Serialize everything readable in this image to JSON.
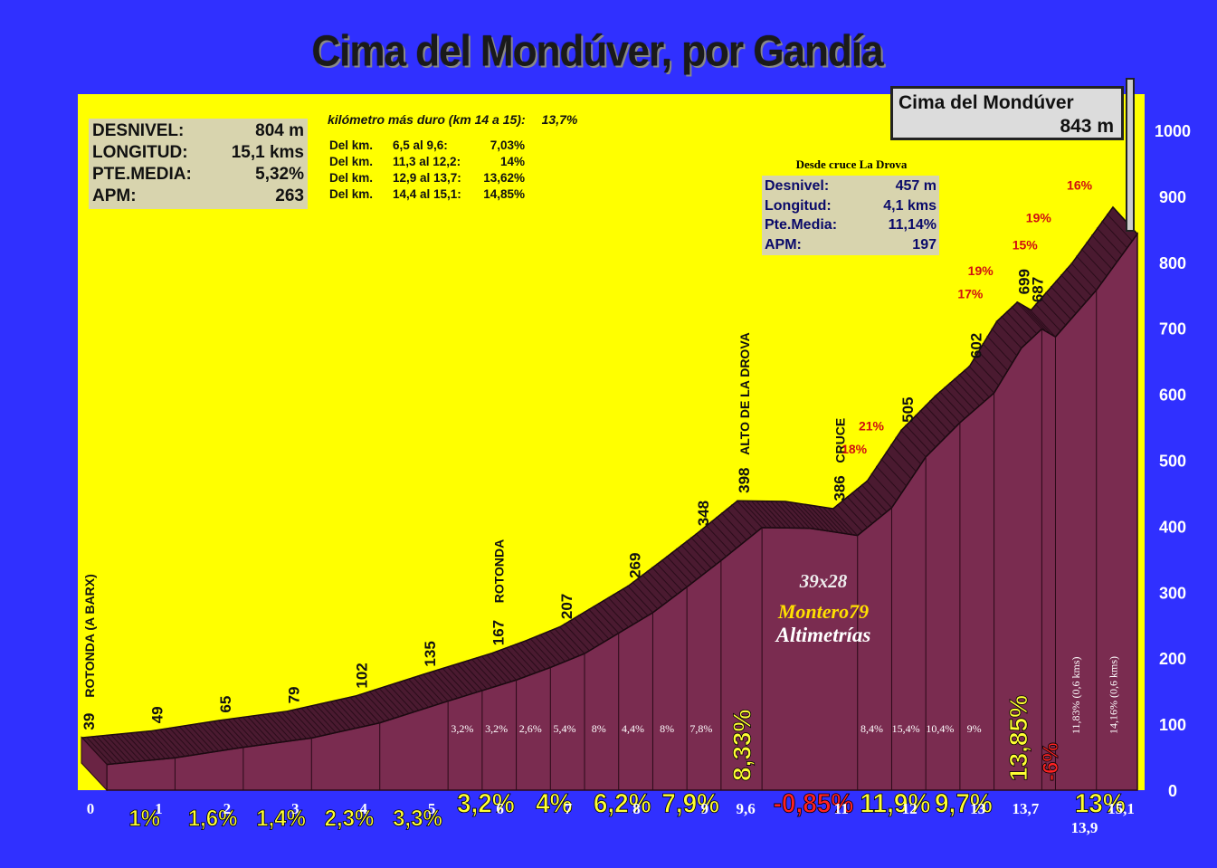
{
  "title": "Cima del Mondúver, por Gandía",
  "summit": {
    "name": "Cima del Mondúver",
    "altitude": "843 m"
  },
  "stats": [
    {
      "label": "DESNIVEL:",
      "value": "804 m"
    },
    {
      "label": "LONGITUD:",
      "value": "15,1 kms"
    },
    {
      "label": "PTE.MEDIA:",
      "value": "5,32%"
    },
    {
      "label": "APM:",
      "value": "263"
    }
  ],
  "hardest_km": {
    "label": "kilómetro más duro (km 14 a 15):",
    "value": "13,7%"
  },
  "segments": [
    {
      "a": "Del km.",
      "b": "6,5 al 9,6:",
      "c": "7,03%"
    },
    {
      "a": "Del km.",
      "b": "11,3 al 12,2:",
      "c": "14%"
    },
    {
      "a": "Del km.",
      "b": "12,9 al 13,7:",
      "c": "13,62%"
    },
    {
      "a": "Del km.",
      "b": "14,4 al 15,1:",
      "c": "14,85%"
    }
  ],
  "cruce": {
    "heading": "Desde cruce La Drova",
    "stats": [
      {
        "label": "Desnivel:",
        "value": "457 m"
      },
      {
        "label": "Longitud:",
        "value": "4,1 kms"
      },
      {
        "label": "Pte.Media:",
        "value": "11,14%"
      },
      {
        "label": "APM:",
        "value": "197"
      }
    ]
  },
  "credit": {
    "gear": "39x28",
    "name": "Montero79",
    "site": "Altimetrías"
  },
  "colors": {
    "background": "#3030ff",
    "sky": "#ffff00",
    "profile": "#7a2c50",
    "profile_top": "#4a1a30",
    "gradient_label": "#ffff33",
    "negative_label": "#ff2222",
    "steep_label": "#d01010"
  },
  "chart_data": {
    "type": "area",
    "ylim": [
      0,
      1000
    ],
    "yticks": [
      0,
      100,
      200,
      300,
      400,
      500,
      600,
      700,
      800,
      900,
      1000
    ],
    "xlim": [
      0,
      15.1
    ],
    "xticks": [
      {
        "v": 0,
        "t": "0"
      },
      {
        "v": 1,
        "t": "1"
      },
      {
        "v": 2,
        "t": "2"
      },
      {
        "v": 3,
        "t": "3"
      },
      {
        "v": 4,
        "t": "4"
      },
      {
        "v": 5,
        "t": "5"
      },
      {
        "v": 6,
        "t": "6"
      },
      {
        "v": 7,
        "t": "7"
      },
      {
        "v": 8,
        "t": "8"
      },
      {
        "v": 9,
        "t": "9"
      },
      {
        "v": 9.6,
        "t": "9,6"
      },
      {
        "v": 11,
        "t": "11"
      },
      {
        "v": 12,
        "t": "12"
      },
      {
        "v": 13,
        "t": "13"
      },
      {
        "v": 13.7,
        "t": "13,7"
      },
      {
        "v": 15.1,
        "t": "15,1"
      }
    ],
    "xticks_low": [
      {
        "v": 13.9,
        "t": "13,9"
      }
    ],
    "profile": [
      {
        "x": 0,
        "y": 39
      },
      {
        "x": 1,
        "y": 49
      },
      {
        "x": 2,
        "y": 65
      },
      {
        "x": 3,
        "y": 79
      },
      {
        "x": 4,
        "y": 102
      },
      {
        "x": 5,
        "y": 135
      },
      {
        "x": 5.5,
        "y": 151
      },
      {
        "x": 6,
        "y": 167
      },
      {
        "x": 6.5,
        "y": 186
      },
      {
        "x": 7,
        "y": 207
      },
      {
        "x": 7.5,
        "y": 238
      },
      {
        "x": 8,
        "y": 269
      },
      {
        "x": 8.5,
        "y": 308
      },
      {
        "x": 9,
        "y": 348
      },
      {
        "x": 9.6,
        "y": 398
      },
      {
        "x": 10.3,
        "y": 397
      },
      {
        "x": 11,
        "y": 386
      },
      {
        "x": 11.5,
        "y": 428
      },
      {
        "x": 12,
        "y": 505
      },
      {
        "x": 12.5,
        "y": 557
      },
      {
        "x": 13,
        "y": 602
      },
      {
        "x": 13.4,
        "y": 670
      },
      {
        "x": 13.7,
        "y": 699
      },
      {
        "x": 13.9,
        "y": 687
      },
      {
        "x": 14.5,
        "y": 758
      },
      {
        "x": 15.1,
        "y": 843
      }
    ],
    "altitude_labels": [
      {
        "x": 0,
        "t": "39"
      },
      {
        "x": 1,
        "t": "49"
      },
      {
        "x": 2,
        "t": "65"
      },
      {
        "x": 3,
        "t": "79"
      },
      {
        "x": 4,
        "t": "102"
      },
      {
        "x": 5,
        "t": "135"
      },
      {
        "x": 6,
        "t": "167"
      },
      {
        "x": 7,
        "t": "207"
      },
      {
        "x": 8,
        "t": "269"
      },
      {
        "x": 9,
        "t": "348"
      },
      {
        "x": 9.6,
        "t": "398"
      },
      {
        "x": 11,
        "t": "386"
      },
      {
        "x": 12,
        "t": "505"
      },
      {
        "x": 13,
        "t": "602"
      },
      {
        "x": 13.7,
        "t": "699"
      },
      {
        "x": 13.9,
        "t": "687"
      }
    ],
    "place_labels": [
      {
        "x": 0,
        "t": "ROTONDA (A BARX)"
      },
      {
        "x": 6,
        "t": "ROTONDA"
      },
      {
        "x": 9.6,
        "t": "ALTO DE LA DROVA"
      },
      {
        "x": 11,
        "t": "CRUCE"
      }
    ],
    "km_gradients": [
      {
        "x0": 0,
        "x1": 1,
        "t": "1%"
      },
      {
        "x0": 1,
        "x1": 2,
        "t": "1,6%"
      },
      {
        "x0": 2,
        "x1": 3,
        "t": "1,4%"
      },
      {
        "x0": 3,
        "x1": 4,
        "t": "2,3%"
      },
      {
        "x0": 4,
        "x1": 5,
        "t": "3,3%"
      },
      {
        "x0": 5,
        "x1": 6,
        "t": "3,2%"
      },
      {
        "x0": 6,
        "x1": 7,
        "t": "4%"
      },
      {
        "x0": 7,
        "x1": 8,
        "t": "6,2%"
      },
      {
        "x0": 8,
        "x1": 9,
        "t": "7,9%"
      },
      {
        "x0": 9,
        "x1": 9.6,
        "t": "8,33%",
        "vertical": true
      },
      {
        "x0": 9.6,
        "x1": 11,
        "t": "-0,85%",
        "negative": true
      },
      {
        "x0": 11,
        "x1": 12,
        "t": "11,9%"
      },
      {
        "x0": 12,
        "x1": 13,
        "t": "9,7%"
      },
      {
        "x0": 13,
        "x1": 13.7,
        "t": "13,85%",
        "vertical": true
      },
      {
        "x0": 13.7,
        "x1": 13.9,
        "t": "-6%",
        "negative": true,
        "vertical": true
      },
      {
        "x0": 13.9,
        "x1": 15.1,
        "t": "13%"
      }
    ],
    "half_km_gradients": [
      {
        "x": 5.5,
        "t": "3,2%"
      },
      {
        "x": 6,
        "t": "3,2%"
      },
      {
        "x": 6.5,
        "t": "2,6%"
      },
      {
        "x": 7,
        "t": "5,4%"
      },
      {
        "x": 7.5,
        "t": "8%"
      },
      {
        "x": 8,
        "t": "4,4%"
      },
      {
        "x": 8.5,
        "t": "8%"
      },
      {
        "x": 9,
        "t": "7,8%"
      },
      {
        "x": 11.5,
        "t": "8,4%"
      },
      {
        "x": 12,
        "t": "15,4%"
      },
      {
        "x": 12.5,
        "t": "10,4%"
      },
      {
        "x": 13,
        "t": "9%"
      }
    ],
    "sub_segments": [
      {
        "x": 14.2,
        "t": "11,83%  (0,6 kms)"
      },
      {
        "x": 14.75,
        "t": "14,16%  (0,6 kms)"
      }
    ],
    "steep_ramps": [
      {
        "x": 11.35,
        "y": 505,
        "t": "18%"
      },
      {
        "x": 11.6,
        "y": 540,
        "t": "21%"
      },
      {
        "x": 13.05,
        "y": 740,
        "t": "17%"
      },
      {
        "x": 13.2,
        "y": 775,
        "t": "19%"
      },
      {
        "x": 13.85,
        "y": 814,
        "t": "15%"
      },
      {
        "x": 14.05,
        "y": 855,
        "t": "19%"
      },
      {
        "x": 14.65,
        "y": 905,
        "t": "16%"
      }
    ]
  }
}
